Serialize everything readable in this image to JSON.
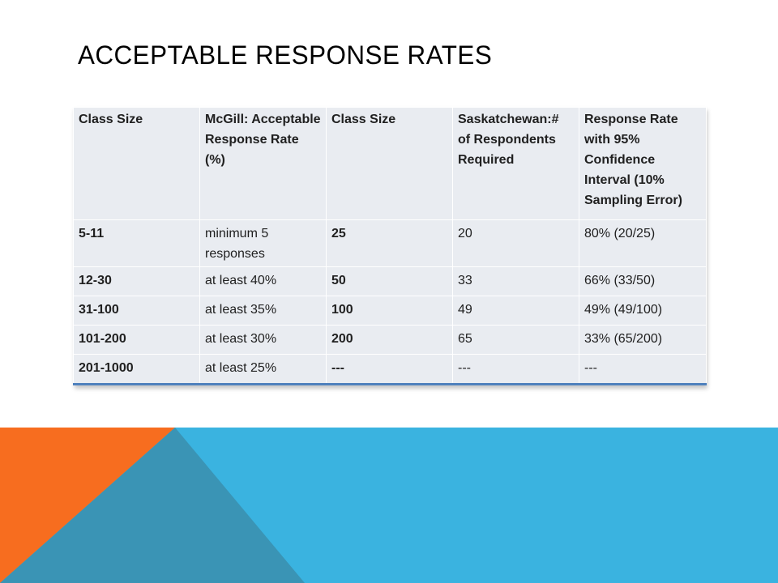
{
  "slide": {
    "title": "ACCEPTABLE  RESPONSE RATES"
  },
  "table": {
    "headers": [
      "Class Size",
      "McGill: Acceptable Response Rate (%)",
      "Class Size",
      "Saskatchewan:# of Respondents Required",
      "Response Rate with 95% Confidence Interval (10% Sampling Error)"
    ],
    "rows": [
      [
        "5-11",
        "minimum 5 responses",
        "25",
        "20",
        "80% (20/25)"
      ],
      [
        "12-30",
        "at least 40%",
        "50",
        "33",
        "66% (33/50)"
      ],
      [
        "31-100",
        "at least 35%",
        "100",
        "49",
        "49% (49/100)"
      ],
      [
        "101-200",
        "at least 30%",
        "200",
        "65",
        "33% (65/200)"
      ],
      [
        "201-1000",
        "at least 25%",
        "---",
        "---",
        "---"
      ]
    ]
  },
  "colors": {
    "accent_blue": "#3ab3e0",
    "accent_orange": "#f76d1f",
    "accent_teal": "#3a94b5",
    "table_fill": "#e9ecf1",
    "table_bottom_border": "#4f81bd"
  }
}
